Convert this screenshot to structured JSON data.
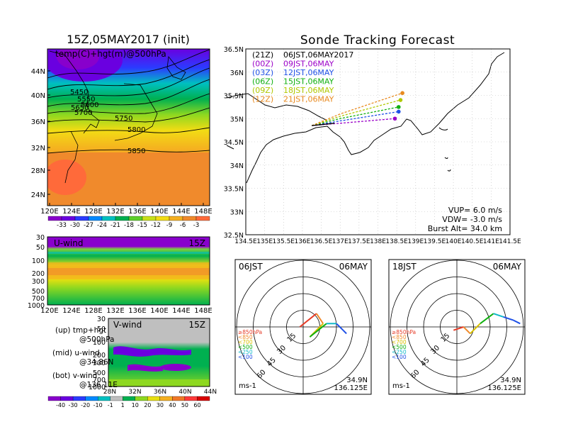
{
  "left_panel": {
    "title": "15Z,05MAY2017 (init)",
    "map_label": "temp(C)+hgt(m)@500hPa",
    "lat_ticks": [
      "44N",
      "40N",
      "36N",
      "32N",
      "28N",
      "24N"
    ],
    "lon_ticks": [
      "120E",
      "124E",
      "128E",
      "132E",
      "136E",
      "140E",
      "144E",
      "148E"
    ],
    "contour_labels": [
      "5450",
      "5550",
      "5600",
      "5650",
      "5700",
      "5750",
      "5800",
      "5850"
    ],
    "colorbar_ticks": [
      "-33",
      "-30",
      "-27",
      "-24",
      "-21",
      "-18",
      "-15",
      "-12",
      "-9",
      "-6",
      "-3"
    ],
    "colorbar_colors": [
      "#8800cc",
      "#6a00e0",
      "#2b3bff",
      "#0089ff",
      "#00c0c0",
      "#00b050",
      "#5ecf2a",
      "#c8e01a",
      "#f2dc14",
      "#f5b020",
      "#f08a2c",
      "#ff6a3a"
    ]
  },
  "uwind_panel": {
    "label": "U-wind",
    "time": "15Z",
    "p_ticks": [
      "30",
      "50",
      "100",
      "200",
      "300",
      "500",
      "700",
      "1000"
    ],
    "lon_ticks": [
      "120E",
      "124E",
      "128E",
      "132E",
      "136E",
      "140E",
      "144E",
      "148E"
    ]
  },
  "vwind_panel": {
    "label": "V-wind",
    "time": "15Z",
    "p_ticks": [
      "30",
      "50",
      "100",
      "200",
      "300",
      "500",
      "700",
      "1000"
    ],
    "lat_ticks": [
      "28N",
      "32N",
      "36N",
      "40N",
      "44N"
    ]
  },
  "legend_text": {
    "up1": "(up) tmp+hgt",
    "up2": "@500hPa",
    "mid1": "(mid) u-wind",
    "mid2": "@34.86N",
    "bot1": "(bot) v-wind",
    "bot2": "@136.11E"
  },
  "wind_colorbar": {
    "ticks": [
      "-40",
      "-30",
      "-20",
      "-10",
      "-1",
      "1",
      "10",
      "20",
      "30",
      "40",
      "50",
      "60"
    ],
    "colors": [
      "#8800cc",
      "#6a00e0",
      "#2b3bff",
      "#0089ff",
      "#00c0c0",
      "#bfbfbf",
      "#00b050",
      "#8ed820",
      "#e8e010",
      "#f5b020",
      "#f07828",
      "#ff3a3a",
      "#d80000"
    ]
  },
  "tracking": {
    "title": "Sonde Tracking Forecast",
    "lat_ticks": [
      "36.5N",
      "36N",
      "35.5N",
      "35N",
      "34.5N",
      "34N",
      "33.5N",
      "33N",
      "32.5N"
    ],
    "lon_ticks": [
      "134.5E",
      "135E",
      "135.5E",
      "136E",
      "136.5E",
      "137E",
      "137.5E",
      "138E",
      "138.5E",
      "139E",
      "139.5E",
      "140E",
      "140.5E",
      "141E",
      "141.5E"
    ],
    "launches": [
      {
        "code": "(21Z)",
        "time": "06JST,06MAY2017",
        "color": "#000000"
      },
      {
        "code": "(00Z)",
        "time": "09JST,06MAY",
        "color": "#9b00c8"
      },
      {
        "code": "(03Z)",
        "time": "12JST,06MAY",
        "color": "#1e50e6"
      },
      {
        "code": "(06Z)",
        "time": "15JST,06MAY",
        "color": "#10b010"
      },
      {
        "code": "(09Z)",
        "time": "18JST,06MAY",
        "color": "#b0c800"
      },
      {
        "code": "(12Z)",
        "time": "21JST,06MAY",
        "color": "#e88a20"
      }
    ],
    "params": {
      "vup": "VUP= 6.0 m/s",
      "vdw": "VDW= -3.0 m/s",
      "burst": "Burst Alt= 34.0 km"
    }
  },
  "hodographs": [
    {
      "time": "06JST",
      "date": "06MAY",
      "lat": "34.9N",
      "lon": "136.125E",
      "unit": "ms-1",
      "ring_labels": [
        "15",
        "30",
        "45",
        "60"
      ],
      "levels": [
        {
          "label": "≥850hPa",
          "color": "#e63c28"
        },
        {
          "label": "<850",
          "color": "#f08a2c"
        },
        {
          "label": "<700",
          "color": "#d8c000"
        },
        {
          "label": "<500",
          "color": "#10b010"
        },
        {
          "label": "<250",
          "color": "#10b8c8"
        },
        {
          "label": "<100",
          "color": "#1e50e6"
        }
      ]
    },
    {
      "time": "18JST",
      "date": "06MAY",
      "lat": "34.9N",
      "lon": "136.125E",
      "unit": "ms-1",
      "ring_labels": [
        "15",
        "30",
        "45",
        "60"
      ],
      "levels": [
        {
          "label": "≥850hPa",
          "color": "#e63c28"
        },
        {
          "label": "<850",
          "color": "#f08a2c"
        },
        {
          "label": "<700",
          "color": "#d8c000"
        },
        {
          "label": "<500",
          "color": "#10b010"
        },
        {
          "label": "<250",
          "color": "#10b8c8"
        },
        {
          "label": "<100",
          "color": "#1e50e6"
        }
      ]
    }
  ],
  "chart_data": [
    {
      "type": "heatmap",
      "title": "15Z,05MAY2017 (init)",
      "subtitle": "temp(C)+hgt(m)@500hPa",
      "x_range": [
        "120E",
        "150E"
      ],
      "y_range": [
        "22N",
        "48N"
      ],
      "contour_levels": [
        5450,
        5550,
        5600,
        5650,
        5700,
        5750,
        5800,
        5850
      ],
      "color_scale_ticks": [
        -33,
        -30,
        -27,
        -24,
        -21,
        -18,
        -15,
        -12,
        -9,
        -6,
        -3
      ]
    },
    {
      "type": "heatmap",
      "title": "U-wind",
      "x_range": [
        "120E",
        "150E"
      ],
      "y_range_hPa": [
        1000,
        30
      ],
      "y_log": true
    },
    {
      "type": "heatmap",
      "title": "V-wind",
      "x_range": [
        "28N",
        "44N"
      ],
      "y_range_hPa": [
        1000,
        30
      ],
      "y_log": true,
      "color_scale_ticks": [
        -40,
        -30,
        -20,
        -10,
        -1,
        1,
        10,
        20,
        30,
        40,
        50,
        60
      ]
    },
    {
      "type": "line",
      "title": "Sonde Tracking Forecast",
      "xlim": [
        134.5,
        141.5
      ],
      "ylim": [
        32.5,
        36.5
      ],
      "series": [
        {
          "name": "(00Z) 09JST,06MAY",
          "points": [
            [
              136.25,
              34.85
            ],
            [
              137.0,
              34.9
            ],
            [
              138.45,
              35.0
            ]
          ]
        },
        {
          "name": "(03Z) 12JST,06MAY",
          "points": [
            [
              136.25,
              34.85
            ],
            [
              137.0,
              34.95
            ],
            [
              138.55,
              35.15
            ]
          ]
        },
        {
          "name": "(06Z) 15JST,06MAY",
          "points": [
            [
              136.25,
              34.85
            ],
            [
              137.0,
              35.0
            ],
            [
              138.55,
              35.25
            ]
          ]
        },
        {
          "name": "(09Z) 18JST,06MAY",
          "points": [
            [
              136.25,
              34.85
            ],
            [
              137.0,
              35.05
            ],
            [
              138.6,
              35.4
            ]
          ]
        },
        {
          "name": "(12Z) 21JST,06MAY",
          "points": [
            [
              136.25,
              34.85
            ],
            [
              137.0,
              35.1
            ],
            [
              138.65,
              35.55
            ]
          ]
        }
      ]
    },
    {
      "type": "scatter",
      "title": "06JST 06MAY",
      "unit": "ms-1",
      "ring_values": [
        15,
        30,
        45,
        60
      ],
      "hodograph_uv": [
        [
          -1,
          0
        ],
        [
          4,
          4
        ],
        [
          6,
          1
        ],
        [
          2,
          -3
        ],
        [
          7,
          1
        ],
        [
          10,
          1
        ],
        [
          12,
          -1
        ],
        [
          13,
          -2
        ]
      ]
    },
    {
      "type": "scatter",
      "title": "18JST 06MAY",
      "unit": "ms-1",
      "ring_values": [
        15,
        30,
        45,
        60
      ],
      "hodograph_uv": [
        [
          -1,
          -1
        ],
        [
          2,
          0
        ],
        [
          4,
          -2
        ],
        [
          7,
          1
        ],
        [
          11,
          4
        ],
        [
          14,
          3
        ],
        [
          17,
          2
        ],
        [
          19,
          1
        ]
      ]
    }
  ]
}
